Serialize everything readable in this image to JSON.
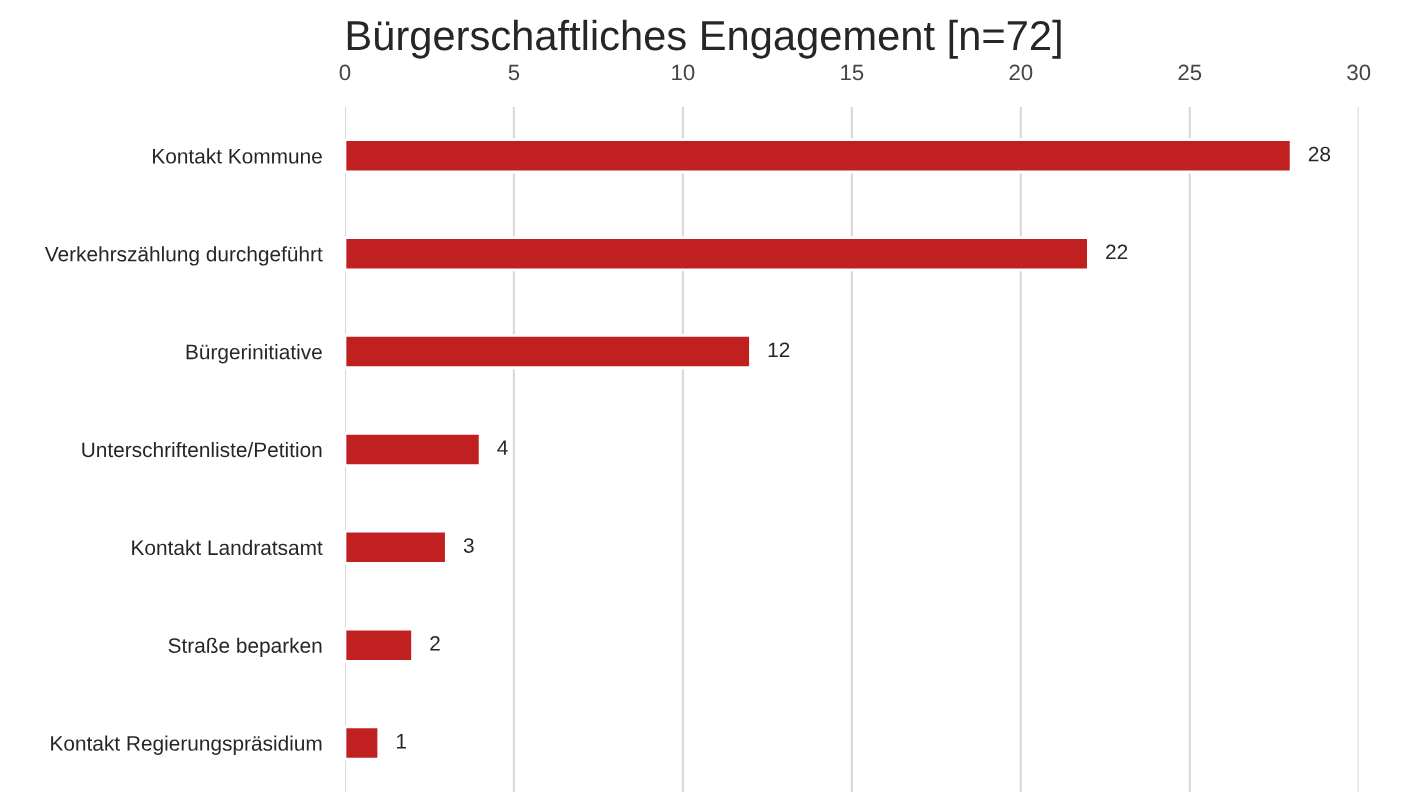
{
  "chart_data": {
    "type": "bar",
    "orientation": "horizontal",
    "title": "Bürgerschaftliches Engagement [n=72]",
    "categories": [
      "Kontakt Kommune",
      "Verkehrszählung durchgeführt",
      "Bürgerinitiative",
      "Unterschriftenliste/Petition",
      "Kontakt Landratsamt",
      "Straße beparken",
      "Kontakt Regierungspräsidium"
    ],
    "values": [
      28,
      22,
      12,
      4,
      3,
      2,
      1
    ],
    "color": "#c0201f",
    "xlim": [
      0,
      30
    ],
    "xticks": [
      0,
      5,
      10,
      15,
      20,
      25,
      30
    ],
    "grid": "x",
    "data_labels": true
  }
}
